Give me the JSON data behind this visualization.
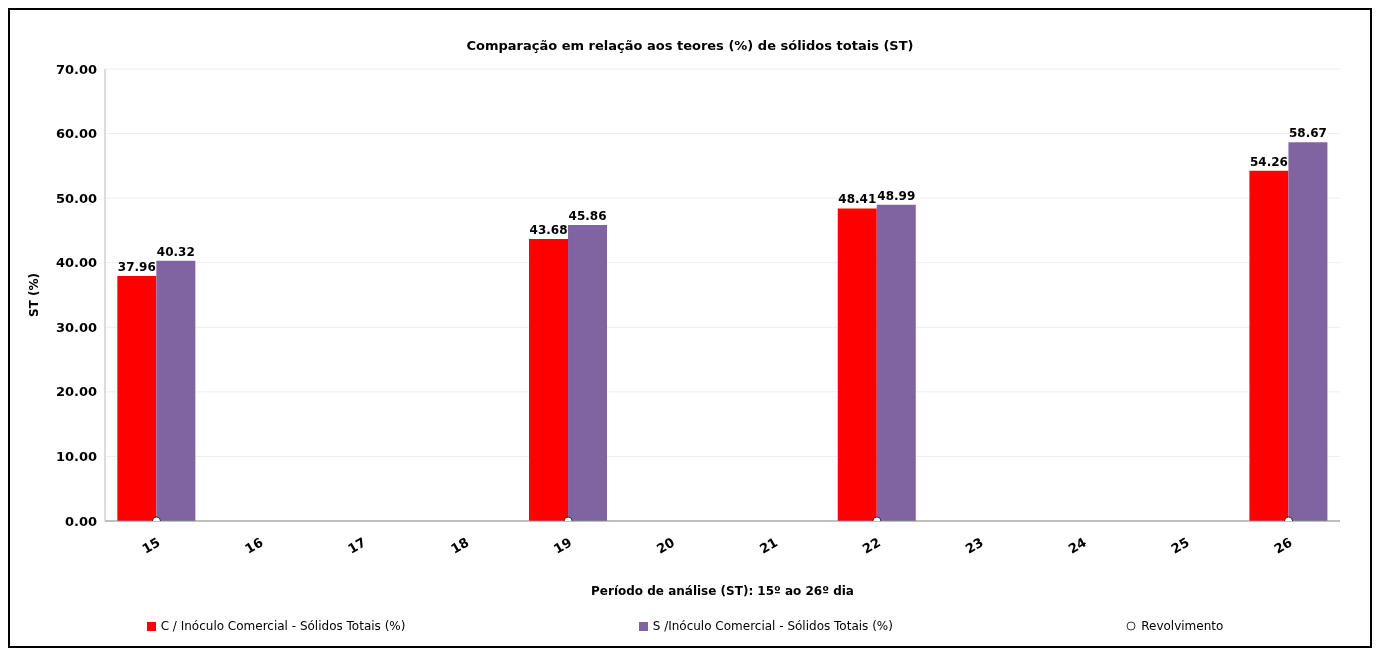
{
  "chart_data": {
    "type": "bar",
    "title": "Comparação  em relação aos teores (%) de sólidos totais (ST)",
    "xlabel": "Período de análise (ST): 15º ao 26º dia",
    "ylabel": "ST (%)",
    "categories": [
      "15",
      "16",
      "17",
      "18",
      "19",
      "20",
      "21",
      "22",
      "23",
      "24",
      "25",
      "26"
    ],
    "series": [
      {
        "name": "C / Inóculo Comercial - Sólidos Totais (%)",
        "color": "#ff0000",
        "values": [
          37.96,
          null,
          null,
          null,
          43.68,
          null,
          null,
          48.41,
          null,
          null,
          null,
          54.26
        ],
        "value_labels": [
          "37.96",
          null,
          null,
          null,
          "43.68",
          null,
          null,
          "48.41",
          null,
          null,
          null,
          "54.26"
        ]
      },
      {
        "name": "S /Inóculo Comercial - Sólidos Totais (%)",
        "color": "#8064a2",
        "values": [
          40.32,
          null,
          null,
          null,
          45.86,
          null,
          null,
          48.99,
          null,
          null,
          null,
          58.67
        ],
        "value_labels": [
          "40.32",
          null,
          null,
          null,
          "45.86",
          null,
          null,
          "48.99",
          null,
          null,
          null,
          "58.67"
        ]
      },
      {
        "name": "Revolvimento",
        "type": "scatter",
        "color": "#ffffff",
        "marker": "circle",
        "values": [
          0,
          null,
          null,
          null,
          0,
          null,
          null,
          0,
          null,
          null,
          null,
          0
        ]
      }
    ],
    "ylim": [
      0,
      70
    ],
    "yticks": [
      {
        "value": 0,
        "label": "0.00"
      },
      {
        "value": 10,
        "label": "10.00"
      },
      {
        "value": 20,
        "label": "20.00"
      },
      {
        "value": 30,
        "label": "30.00"
      },
      {
        "value": 40,
        "label": "40.00"
      },
      {
        "value": 50,
        "label": "50.00"
      },
      {
        "value": 60,
        "label": "60.00"
      },
      {
        "value": 70,
        "label": "70.00"
      }
    ],
    "grid": "y",
    "legend": "bottom"
  }
}
